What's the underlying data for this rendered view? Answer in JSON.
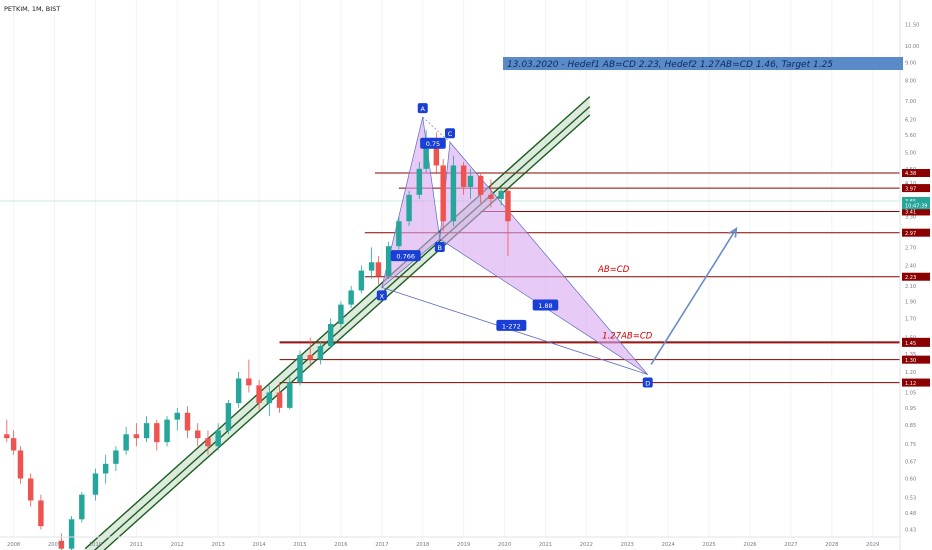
{
  "symbol_label": "PETKIM, 1M, BIST",
  "banner": "13.03.2020 - Hedef1 AB=CD 2.23, Hedef2 1.27AB=CD 1.46, Target 1.25",
  "colors": {
    "up": "#26a69a",
    "down": "#ef5350",
    "level": "#8b0000",
    "channel": "#1b5e20",
    "harmonic_fill": "#d7a6ef",
    "harmonic_stroke": "#5c6bc0",
    "pattern_point": "#1a3fd6",
    "arrow": "#6b8cc7",
    "banner_bg": "#5b8ac8",
    "current_price": "#26a69a"
  },
  "chart_data": {
    "type": "candlestick",
    "interval": "1M",
    "y_scale": "log",
    "ylim": [
      0.41,
      13.5
    ],
    "xlim": [
      "2007-09",
      "2029-09"
    ],
    "x_tick_labels": [
      "2008",
      "2009",
      "2010",
      "2011",
      "2012",
      "2013",
      "2014",
      "2015",
      "2016",
      "2017",
      "2018",
      "2019",
      "2020",
      "2021",
      "2022",
      "2023",
      "2024",
      "2025",
      "2026",
      "2027",
      "2028",
      "2029"
    ],
    "y_tick_labels": [
      "11.50",
      "10.00",
      "9.00",
      "8.00",
      "7.00",
      "6.20",
      "5.60",
      "5.00",
      "4.50",
      "4.10",
      "3.60",
      "3.30",
      "3.00",
      "2.70",
      "2.40",
      "2.10",
      "1.90",
      "1.70",
      "1.50",
      "1.35",
      "1.20",
      "1.05",
      "0.95",
      "0.85",
      "0.75",
      "0.67",
      "0.60",
      "0.53",
      "0.48",
      "0.43"
    ],
    "candles": [
      {
        "d": "2007-11",
        "o": 0.8,
        "h": 0.88,
        "l": 0.76,
        "c": 0.78
      },
      {
        "d": "2008-01",
        "o": 0.78,
        "h": 0.82,
        "l": 0.7,
        "c": 0.72
      },
      {
        "d": "2008-03",
        "o": 0.72,
        "h": 0.74,
        "l": 0.58,
        "c": 0.6
      },
      {
        "d": "2008-06",
        "o": 0.6,
        "h": 0.62,
        "l": 0.5,
        "c": 0.52
      },
      {
        "d": "2008-09",
        "o": 0.52,
        "h": 0.54,
        "l": 0.43,
        "c": 0.44
      },
      {
        "d": "2009-03",
        "o": 0.4,
        "h": 0.42,
        "l": 0.36,
        "c": 0.38
      },
      {
        "d": "2009-06",
        "o": 0.38,
        "h": 0.47,
        "l": 0.37,
        "c": 0.46
      },
      {
        "d": "2009-09",
        "o": 0.46,
        "h": 0.55,
        "l": 0.45,
        "c": 0.54
      },
      {
        "d": "2010-01",
        "o": 0.54,
        "h": 0.64,
        "l": 0.52,
        "c": 0.62
      },
      {
        "d": "2010-04",
        "o": 0.62,
        "h": 0.7,
        "l": 0.58,
        "c": 0.66
      },
      {
        "d": "2010-07",
        "o": 0.66,
        "h": 0.74,
        "l": 0.63,
        "c": 0.72
      },
      {
        "d": "2010-10",
        "o": 0.72,
        "h": 0.84,
        "l": 0.7,
        "c": 0.8
      },
      {
        "d": "2011-01",
        "o": 0.8,
        "h": 0.86,
        "l": 0.74,
        "c": 0.78
      },
      {
        "d": "2011-04",
        "o": 0.78,
        "h": 0.9,
        "l": 0.76,
        "c": 0.86
      },
      {
        "d": "2011-07",
        "o": 0.86,
        "h": 0.88,
        "l": 0.72,
        "c": 0.76
      },
      {
        "d": "2011-10",
        "o": 0.76,
        "h": 0.9,
        "l": 0.74,
        "c": 0.88
      },
      {
        "d": "2012-01",
        "o": 0.88,
        "h": 0.95,
        "l": 0.82,
        "c": 0.92
      },
      {
        "d": "2012-04",
        "o": 0.92,
        "h": 0.96,
        "l": 0.78,
        "c": 0.82
      },
      {
        "d": "2012-07",
        "o": 0.82,
        "h": 0.86,
        "l": 0.74,
        "c": 0.78
      },
      {
        "d": "2012-10",
        "o": 0.78,
        "h": 0.82,
        "l": 0.7,
        "c": 0.74
      },
      {
        "d": "2013-01",
        "o": 0.74,
        "h": 0.86,
        "l": 0.72,
        "c": 0.82
      },
      {
        "d": "2013-04",
        "o": 0.82,
        "h": 1.0,
        "l": 0.8,
        "c": 0.98
      },
      {
        "d": "2013-07",
        "o": 0.98,
        "h": 1.2,
        "l": 0.95,
        "c": 1.15
      },
      {
        "d": "2013-10",
        "o": 1.15,
        "h": 1.3,
        "l": 1.05,
        "c": 1.1
      },
      {
        "d": "2014-01",
        "o": 1.1,
        "h": 1.14,
        "l": 0.94,
        "c": 0.98
      },
      {
        "d": "2014-04",
        "o": 0.98,
        "h": 1.1,
        "l": 0.9,
        "c": 1.05
      },
      {
        "d": "2014-07",
        "o": 1.05,
        "h": 1.12,
        "l": 0.92,
        "c": 0.95
      },
      {
        "d": "2014-10",
        "o": 0.95,
        "h": 1.16,
        "l": 0.94,
        "c": 1.12
      },
      {
        "d": "2015-01",
        "o": 1.12,
        "h": 1.38,
        "l": 1.1,
        "c": 1.34
      },
      {
        "d": "2015-04",
        "o": 1.34,
        "h": 1.5,
        "l": 1.24,
        "c": 1.3
      },
      {
        "d": "2015-07",
        "o": 1.3,
        "h": 1.46,
        "l": 1.26,
        "c": 1.42
      },
      {
        "d": "2015-10",
        "o": 1.42,
        "h": 1.7,
        "l": 1.4,
        "c": 1.64
      },
      {
        "d": "2016-01",
        "o": 1.64,
        "h": 1.9,
        "l": 1.6,
        "c": 1.86
      },
      {
        "d": "2016-04",
        "o": 1.86,
        "h": 2.1,
        "l": 1.82,
        "c": 2.04
      },
      {
        "d": "2016-07",
        "o": 2.04,
        "h": 2.4,
        "l": 2.0,
        "c": 2.32
      },
      {
        "d": "2016-10",
        "o": 2.32,
        "h": 2.7,
        "l": 2.2,
        "c": 2.45
      },
      {
        "d": "2016-12",
        "o": 2.45,
        "h": 2.55,
        "l": 2.12,
        "c": 2.24
      },
      {
        "d": "2017-03",
        "o": 2.24,
        "h": 2.8,
        "l": 2.2,
        "c": 2.72
      },
      {
        "d": "2017-06",
        "o": 2.72,
        "h": 3.3,
        "l": 2.66,
        "c": 3.2
      },
      {
        "d": "2017-09",
        "o": 3.2,
        "h": 3.9,
        "l": 3.1,
        "c": 3.8
      },
      {
        "d": "2017-12",
        "o": 3.8,
        "h": 4.7,
        "l": 3.7,
        "c": 4.5
      },
      {
        "d": "2018-02",
        "o": 4.5,
        "h": 5.8,
        "l": 4.4,
        "c": 5.5
      },
      {
        "d": "2018-05",
        "o": 5.5,
        "h": 5.7,
        "l": 4.4,
        "c": 4.6
      },
      {
        "d": "2018-07",
        "o": 4.6,
        "h": 4.8,
        "l": 3.0,
        "c": 3.2
      },
      {
        "d": "2018-10",
        "o": 3.2,
        "h": 4.9,
        "l": 3.1,
        "c": 4.6
      },
      {
        "d": "2019-01",
        "o": 4.6,
        "h": 4.7,
        "l": 3.8,
        "c": 4.0
      },
      {
        "d": "2019-03",
        "o": 4.0,
        "h": 4.5,
        "l": 3.7,
        "c": 4.3
      },
      {
        "d": "2019-06",
        "o": 4.3,
        "h": 4.4,
        "l": 3.6,
        "c": 3.8
      },
      {
        "d": "2019-09",
        "o": 3.8,
        "h": 4.2,
        "l": 3.5,
        "c": 3.7
      },
      {
        "d": "2019-12",
        "o": 3.7,
        "h": 4.0,
        "l": 3.55,
        "c": 3.9
      },
      {
        "d": "2020-02",
        "o": 3.9,
        "h": 3.95,
        "l": 2.55,
        "c": 3.2
      }
    ],
    "levels": [
      {
        "value": 4.38,
        "label": "4.38",
        "from": "2016-11"
      },
      {
        "value": 3.97,
        "label": "3.97",
        "from": "2017-06"
      },
      {
        "value": 3.41,
        "label": "3.41",
        "from": "2019-06"
      },
      {
        "value": 2.97,
        "label": "2.97",
        "from": "2016-08"
      },
      {
        "value": 2.23,
        "label": "2.23",
        "from": "2016-08"
      },
      {
        "value": 1.46,
        "label": "1.46",
        "from": "2014-07"
      },
      {
        "value": 1.45,
        "label": "1.45",
        "from": "2014-07"
      },
      {
        "value": 1.3,
        "label": "1.30",
        "from": "2014-07"
      },
      {
        "value": 1.12,
        "label": "1.12",
        "from": "2014-07"
      }
    ],
    "current_price": {
      "value": 3.65,
      "label": "3.65"
    },
    "countdown": {
      "value": 3.55,
      "label": "10:47:39"
    },
    "channel": {
      "start": {
        "d": "2009-10",
        "v": 0.38
      },
      "end": {
        "d": "2022-02",
        "v": 7.2
      },
      "mid_shift": -0.065,
      "lower_shift": -0.12
    },
    "harmonic_points": [
      {
        "name": "X",
        "d": "2017-01",
        "v": 2.08
      },
      {
        "name": "A",
        "d": "2018-01",
        "v": 6.3
      },
      {
        "name": "B",
        "d": "2018-06",
        "v": 2.85
      },
      {
        "name": "C",
        "d": "2018-09",
        "v": 5.35
      },
      {
        "name": "D",
        "d": "2023-07",
        "v": 1.18
      }
    ],
    "ratios": [
      {
        "label": "0.766",
        "d": "2017-08",
        "v": 2.55
      },
      {
        "label": "0.75",
        "d": "2018-04",
        "v": 5.3
      },
      {
        "label": "1.88",
        "d": "2021-01",
        "v": 1.85
      },
      {
        "label": "1-272",
        "d": "2020-03",
        "v": 1.62
      }
    ],
    "annotations": [
      {
        "text": "AB=CD",
        "d": "2022-09",
        "v": 2.3
      },
      {
        "text": "1.27AB=CD",
        "d": "2023-01",
        "v": 1.49
      }
    ],
    "arrow": {
      "from": {
        "d": "2023-08",
        "v": 1.26
      },
      "to": {
        "d": "2025-09",
        "v": 3.05
      }
    }
  }
}
